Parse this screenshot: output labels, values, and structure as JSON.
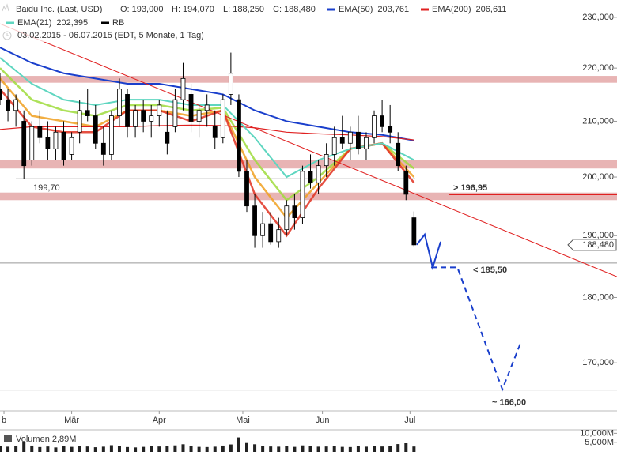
{
  "chart_data": {
    "type": "candlestick",
    "title": "Baidu Inc. (Last, USD)",
    "ohlc_labels": [
      "O: 193,000",
      "H: 194,070",
      "L: 188,250",
      "C: 188,480"
    ],
    "range": "03.02.2015 - 06.07.2015 (EDT, 5 Monate, 1 Tag)",
    "log_scale": true,
    "ylim": [
      163.0,
      233.5
    ],
    "yticks": [
      {
        "value": 230,
        "label": "230,000"
      },
      {
        "value": 220,
        "label": "220,000"
      },
      {
        "value": 210,
        "label": "210,000"
      },
      {
        "value": 200,
        "label": "200,000"
      },
      {
        "value": 190,
        "label": "190,000"
      },
      {
        "value": 180,
        "label": "180,000"
      },
      {
        "value": 170,
        "label": "170,000"
      }
    ],
    "xlim": [
      0,
      155
    ],
    "xticks": [
      {
        "value": 1,
        "label": "b"
      },
      {
        "value": 18,
        "label": "Mär"
      },
      {
        "value": 40,
        "label": "Apr"
      },
      {
        "value": 61,
        "label": "Mai"
      },
      {
        "value": 81,
        "label": "Jun"
      },
      {
        "value": 103,
        "label": "Jul"
      }
    ],
    "up_color": "#ffffff",
    "down_color": "#000000",
    "x": [
      0,
      2,
      4,
      6,
      8,
      10,
      12,
      14,
      16,
      18,
      20,
      22,
      24,
      26,
      28,
      30,
      32,
      34,
      36,
      38,
      40,
      42,
      44,
      46,
      48,
      50,
      52,
      54,
      56,
      58,
      60,
      62,
      64,
      66,
      68,
      70,
      72,
      74,
      76,
      78,
      80,
      82,
      84,
      86,
      88,
      90,
      92,
      94,
      96,
      98,
      100,
      102,
      104
    ],
    "open": [
      216,
      214,
      212,
      210,
      203,
      209,
      207,
      205,
      208,
      204,
      208,
      212,
      211,
      206,
      204,
      211,
      215,
      209,
      212,
      210,
      211,
      208,
      209,
      214,
      215,
      210,
      212,
      209,
      207,
      215,
      214,
      201,
      195,
      190,
      192,
      189,
      191,
      195,
      193,
      201,
      199,
      202,
      204,
      207,
      206,
      208,
      205,
      207,
      211,
      209,
      206,
      201,
      193
    ],
    "high": [
      219,
      216,
      215,
      212,
      210,
      212,
      210,
      209,
      210,
      208,
      214,
      216,
      213,
      209,
      212,
      218,
      216,
      213,
      214,
      213,
      214,
      212,
      216,
      221,
      217,
      213,
      215,
      212,
      215,
      223,
      215,
      203,
      197,
      194,
      194,
      193,
      196,
      197,
      202,
      204,
      203,
      206,
      209,
      211,
      209,
      211,
      208,
      212,
      214,
      213,
      208,
      202,
      194.07
    ],
    "low": [
      213,
      210,
      209,
      199.7,
      202,
      206,
      203,
      203,
      202,
      203,
      206,
      210,
      205,
      202,
      203,
      209,
      207,
      207,
      208,
      207,
      209,
      204,
      208,
      212,
      208,
      207,
      209,
      205,
      206,
      213,
      200,
      194,
      188,
      188,
      188.5,
      188,
      190,
      191,
      192,
      198,
      197,
      200,
      202,
      205,
      203,
      204,
      203,
      206,
      208,
      206,
      201,
      196,
      188.25
    ],
    "close": [
      214,
      212,
      214,
      202,
      209,
      207,
      205,
      208,
      203,
      207,
      212,
      211,
      206,
      204,
      211,
      216,
      209,
      212,
      210,
      211,
      213,
      206,
      214,
      218,
      210,
      212,
      213,
      207,
      214,
      219,
      201,
      195,
      190,
      192,
      189,
      191,
      195,
      193,
      201,
      199,
      202,
      204,
      207,
      206,
      208,
      205,
      207,
      211,
      209,
      208,
      202,
      197,
      188.48
    ],
    "last_price": {
      "value": 188.48,
      "label": "188,480"
    },
    "line_x": [
      0,
      8,
      16,
      24,
      32,
      40,
      48,
      56,
      64,
      72,
      80,
      88,
      96,
      104
    ],
    "indicators": [
      {
        "name": "EMA(50)",
        "reading": "203,761",
        "color": "#1a3fcc",
        "values": [
          224,
          221,
          219,
          218,
          217,
          217,
          216,
          215,
          212,
          210,
          209,
          208,
          207.5,
          206.5
        ]
      },
      {
        "name": "EMA(200)",
        "reading": "206,611",
        "color": "#e02020",
        "values": [
          208.5,
          209,
          209,
          209,
          209,
          209.2,
          209.3,
          209.2,
          208.8,
          208,
          207.7,
          207.5,
          207.2,
          206.6
        ]
      },
      {
        "name": "EMA(21)",
        "reading": "202,395",
        "color": "#5fd6c0",
        "values": [
          222,
          217,
          214,
          213,
          214,
          214,
          213,
          213,
          207,
          200,
          203,
          205,
          206,
          203
        ]
      },
      {
        "name": "RB",
        "color": "#000000"
      }
    ],
    "ribbon": [
      {
        "color": "#9fdc3c",
        "values": [
          220,
          214,
          212,
          211,
          213,
          213,
          212,
          212.5,
          203,
          196,
          200,
          205,
          206,
          201.5
        ]
      },
      {
        "color": "#f0a020",
        "values": [
          218,
          211,
          210,
          209,
          212,
          212,
          211,
          212,
          200,
          193,
          199,
          205,
          206,
          200
        ]
      },
      {
        "color": "#e03020",
        "values": [
          216,
          209,
          208,
          208,
          212,
          212,
          210,
          212,
          197,
          190,
          198,
          205,
          206,
          199
        ]
      }
    ],
    "zones": [
      [
        217.2,
        218.5
      ],
      [
        201.5,
        203.0
      ],
      [
        196.0,
        197.3
      ]
    ],
    "zone_color": "#e8b4b4",
    "trendline": {
      "color": "#e02020",
      "x": [
        0,
        155
      ],
      "values": [
        228.7,
        183.3
      ]
    },
    "levels": [
      {
        "label": "199,70",
        "value": 199.7,
        "color": "#999999",
        "label_color": "#999999"
      },
      {
        "label": "> 196,95",
        "value": 196.95,
        "color": "#e02020",
        "label_color": "#e02020"
      },
      {
        "label": "< 185,50",
        "value": 185.5,
        "color": "#999999",
        "label_color": "#1a3fcc"
      },
      {
        "label": "~ 166,00",
        "value": 166.0,
        "color": "#999999",
        "label_color": "#1a3fcc"
      }
    ],
    "forecast": {
      "color": "#1a3fcc",
      "solid": {
        "x": [
          104.7,
          106.7,
          108.7,
          110.7
        ],
        "values": [
          188.5,
          190.2,
          184.8,
          189.0
        ]
      },
      "dashed": {
        "x": [
          108.3,
          114.9,
          126.2,
          130.8
        ],
        "values": [
          184.8,
          184.8,
          166.1,
          173.0
        ]
      }
    },
    "volume": {
      "label": "Volumen 2,89M",
      "color": "#222222",
      "ylim": [
        0,
        11
      ],
      "yticks": [
        {
          "value": 10,
          "label": "10,000M"
        },
        {
          "value": 5,
          "label": "5,000M"
        }
      ],
      "values": [
        3.2,
        2.8,
        3.0,
        5.5,
        3.4,
        2.6,
        2.9,
        2.4,
        3.1,
        2.7,
        3.3,
        2.9,
        2.5,
        2.8,
        3.6,
        3.0,
        2.6,
        2.4,
        2.7,
        3.1,
        2.9,
        3.2,
        3.5,
        4.1,
        3.0,
        2.7,
        2.6,
        2.8,
        3.4,
        4.0,
        7.8,
        5.2,
        4.1,
        3.3,
        2.9,
        2.8,
        3.0,
        2.7,
        3.5,
        3.1,
        2.8,
        2.9,
        3.2,
        2.7,
        2.6,
        3.0,
        2.8,
        3.3,
        2.9,
        3.1,
        4.2,
        5.0,
        2.89
      ]
    }
  }
}
